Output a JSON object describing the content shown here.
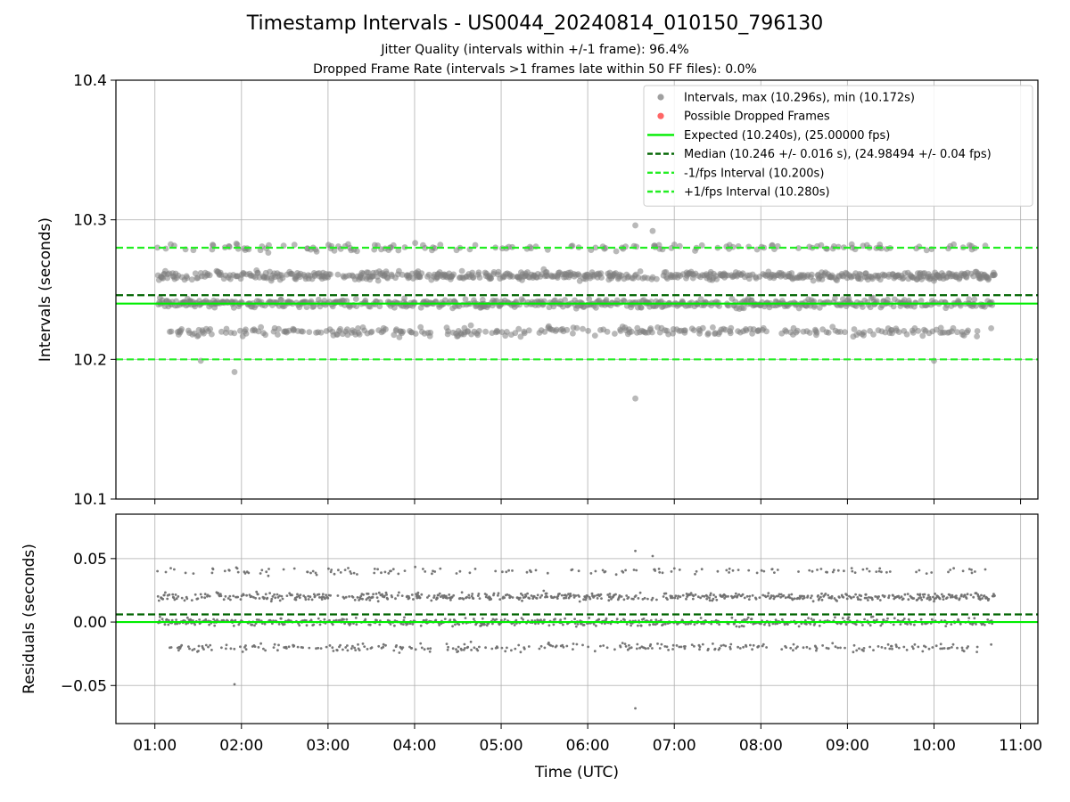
{
  "chart_data": {
    "type": "scatter",
    "title": "Timestamp Intervals - US0044_20240814_010150_796130",
    "subtitle_lines": [
      "Jitter Quality (intervals within +/-1 frame): 96.4%",
      "Dropped Frame Rate (intervals >1 frames late within 50 FF files): 0.0%"
    ],
    "xlabel": "Time (UTC)",
    "x_ticks": [
      "01:00",
      "02:00",
      "03:00",
      "04:00",
      "05:00",
      "06:00",
      "07:00",
      "08:00",
      "09:00",
      "10:00",
      "11:00"
    ],
    "xlim_hours": [
      0.55,
      11.2
    ],
    "grid": true,
    "panels": [
      {
        "name": "intervals",
        "ylabel": "Intervals (seconds)",
        "ylim": [
          10.1,
          10.4
        ],
        "y_ticks": [
          "10.1",
          "10.2",
          "10.3",
          "10.4"
        ],
        "y_tick_values": [
          10.1,
          10.2,
          10.3,
          10.4
        ],
        "point_color": "#808080",
        "legend_position": "top-right",
        "legend": [
          {
            "label": "Intervals, max (10.296s), min (10.172s)",
            "kind": "dot",
            "color": "#a0a0a0"
          },
          {
            "label": "Possible Dropped Frames",
            "kind": "dot",
            "color": "#ff6666"
          },
          {
            "label": "Expected (10.240s), (25.00000 fps)",
            "kind": "solid",
            "color": "#00ee00"
          },
          {
            "label": "Median (10.246 +/- 0.016 s), (24.98494 +/- 0.04 fps)",
            "kind": "dashed",
            "color": "#006400"
          },
          {
            "label": "-1/fps Interval (10.200s)",
            "kind": "dashed",
            "color": "#22ee22"
          },
          {
            "label": "+1/fps Interval (10.280s)",
            "kind": "dashed",
            "color": "#22ee22"
          }
        ],
        "reference_lines": [
          {
            "y": 10.24,
            "style": "solid",
            "color": "#00ee00"
          },
          {
            "y": 10.246,
            "style": "dashed",
            "color": "#006400"
          },
          {
            "y": 10.2,
            "style": "dashed",
            "color": "#22ee22"
          },
          {
            "y": 10.28,
            "style": "dashed",
            "color": "#22ee22"
          }
        ],
        "outliers": [
          {
            "t": 1.92,
            "y": 10.191
          },
          {
            "t": 6.55,
            "y": 10.172
          },
          {
            "t": 6.55,
            "y": 10.296
          },
          {
            "t": 6.75,
            "y": 10.292
          },
          {
            "t": 1.53,
            "y": 10.199
          },
          {
            "t": 10.0,
            "y": 10.199
          }
        ]
      },
      {
        "name": "residuals",
        "ylabel": "Residuals (seconds)",
        "ylim": [
          -0.08,
          0.085
        ],
        "y_ticks": [
          "−0.05",
          "0.00",
          "0.05"
        ],
        "y_tick_values": [
          -0.05,
          0.0,
          0.05
        ],
        "point_color": "#707070",
        "reference_lines": [
          {
            "y": 0.0,
            "style": "solid",
            "color": "#00ee00"
          },
          {
            "y": 0.006,
            "style": "dashed",
            "color": "#006400"
          }
        ],
        "outliers": [
          {
            "t": 1.92,
            "y": -0.049
          },
          {
            "t": 6.55,
            "y": -0.068
          },
          {
            "t": 6.55,
            "y": 0.056
          },
          {
            "t": 6.75,
            "y": 0.052
          }
        ]
      }
    ],
    "series_model": {
      "t_start_hours": 1.03,
      "t_end_hours": 10.7,
      "n_points": 1700,
      "levels": [
        10.22,
        10.24,
        10.26,
        10.28
      ],
      "level_weights": [
        0.18,
        0.36,
        0.36,
        0.1
      ],
      "noise": 0.003,
      "expected": 10.24
    }
  }
}
